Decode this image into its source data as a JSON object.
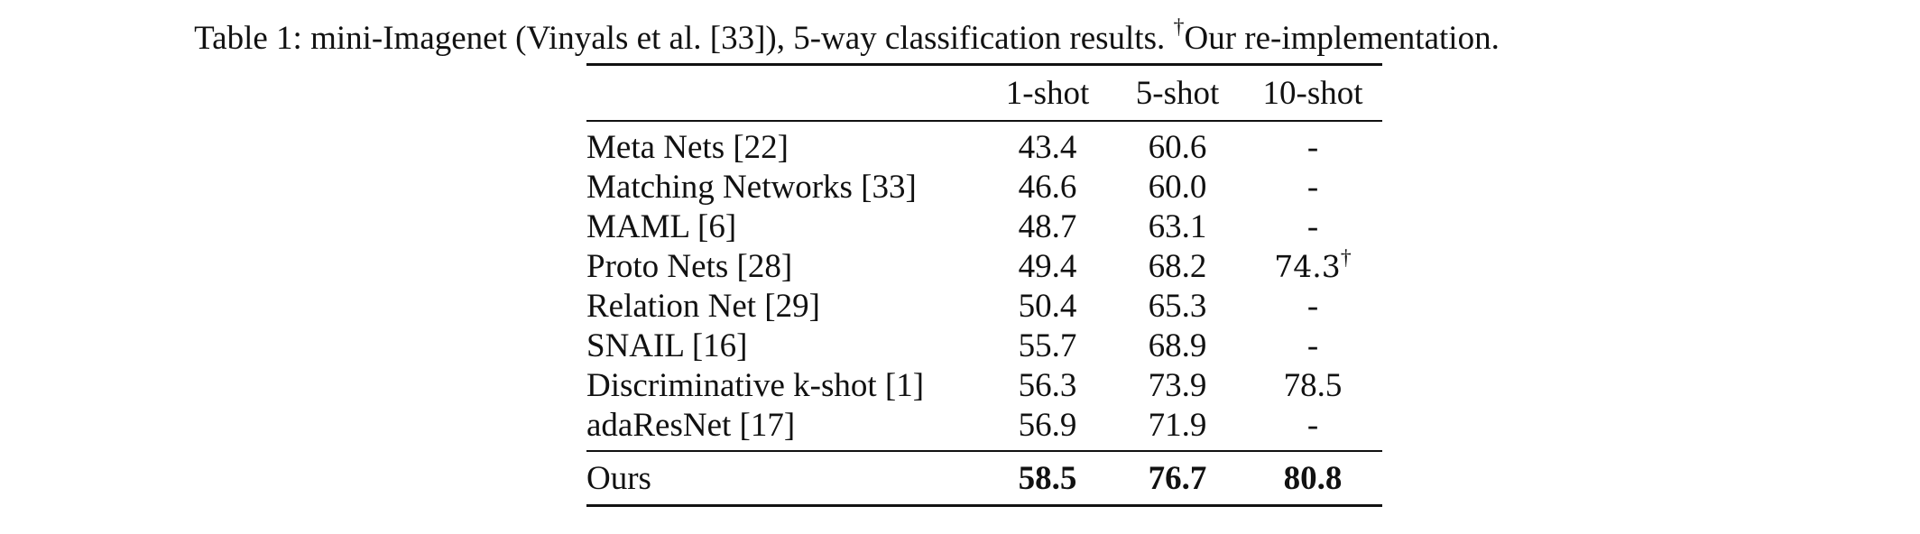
{
  "caption": {
    "prefix": "Table 1: mini-Imagenet (Vinyals et al. [33]), 5-way classification results. ",
    "dagger": "†",
    "suffix": "Our re-implementation."
  },
  "table": {
    "columns": [
      "",
      "1-shot",
      "5-shot",
      "10-shot"
    ],
    "rows": [
      {
        "method": "Meta Nets [22]",
        "shot1": "43.4",
        "shot5": "60.6",
        "shot10": "-"
      },
      {
        "method": "Matching Networks [33]",
        "shot1": "46.6",
        "shot5": "60.0",
        "shot10": "-"
      },
      {
        "method": "MAML [6]",
        "shot1": "48.7",
        "shot5": "63.1",
        "shot10": "-"
      },
      {
        "method": "Proto Nets [28]",
        "shot1": "49.4",
        "shot5": "68.2",
        "shot10": "74.3",
        "shot10_mark": "†"
      },
      {
        "method": "Relation Net [29]",
        "shot1": "50.4",
        "shot5": "65.3",
        "shot10": "-"
      },
      {
        "method": "SNAIL [16]",
        "shot1": "55.7",
        "shot5": "68.9",
        "shot10": "-"
      },
      {
        "method": "Discriminative k-shot [1]",
        "shot1": "56.3",
        "shot5": "73.9",
        "shot10": "78.5"
      },
      {
        "method": "adaResNet [17]",
        "shot1": "56.9",
        "shot5": "71.9",
        "shot10": "-"
      }
    ],
    "ours": {
      "method": "Ours",
      "shot1": "58.5",
      "shot5": "76.7",
      "shot10": "80.8"
    }
  }
}
